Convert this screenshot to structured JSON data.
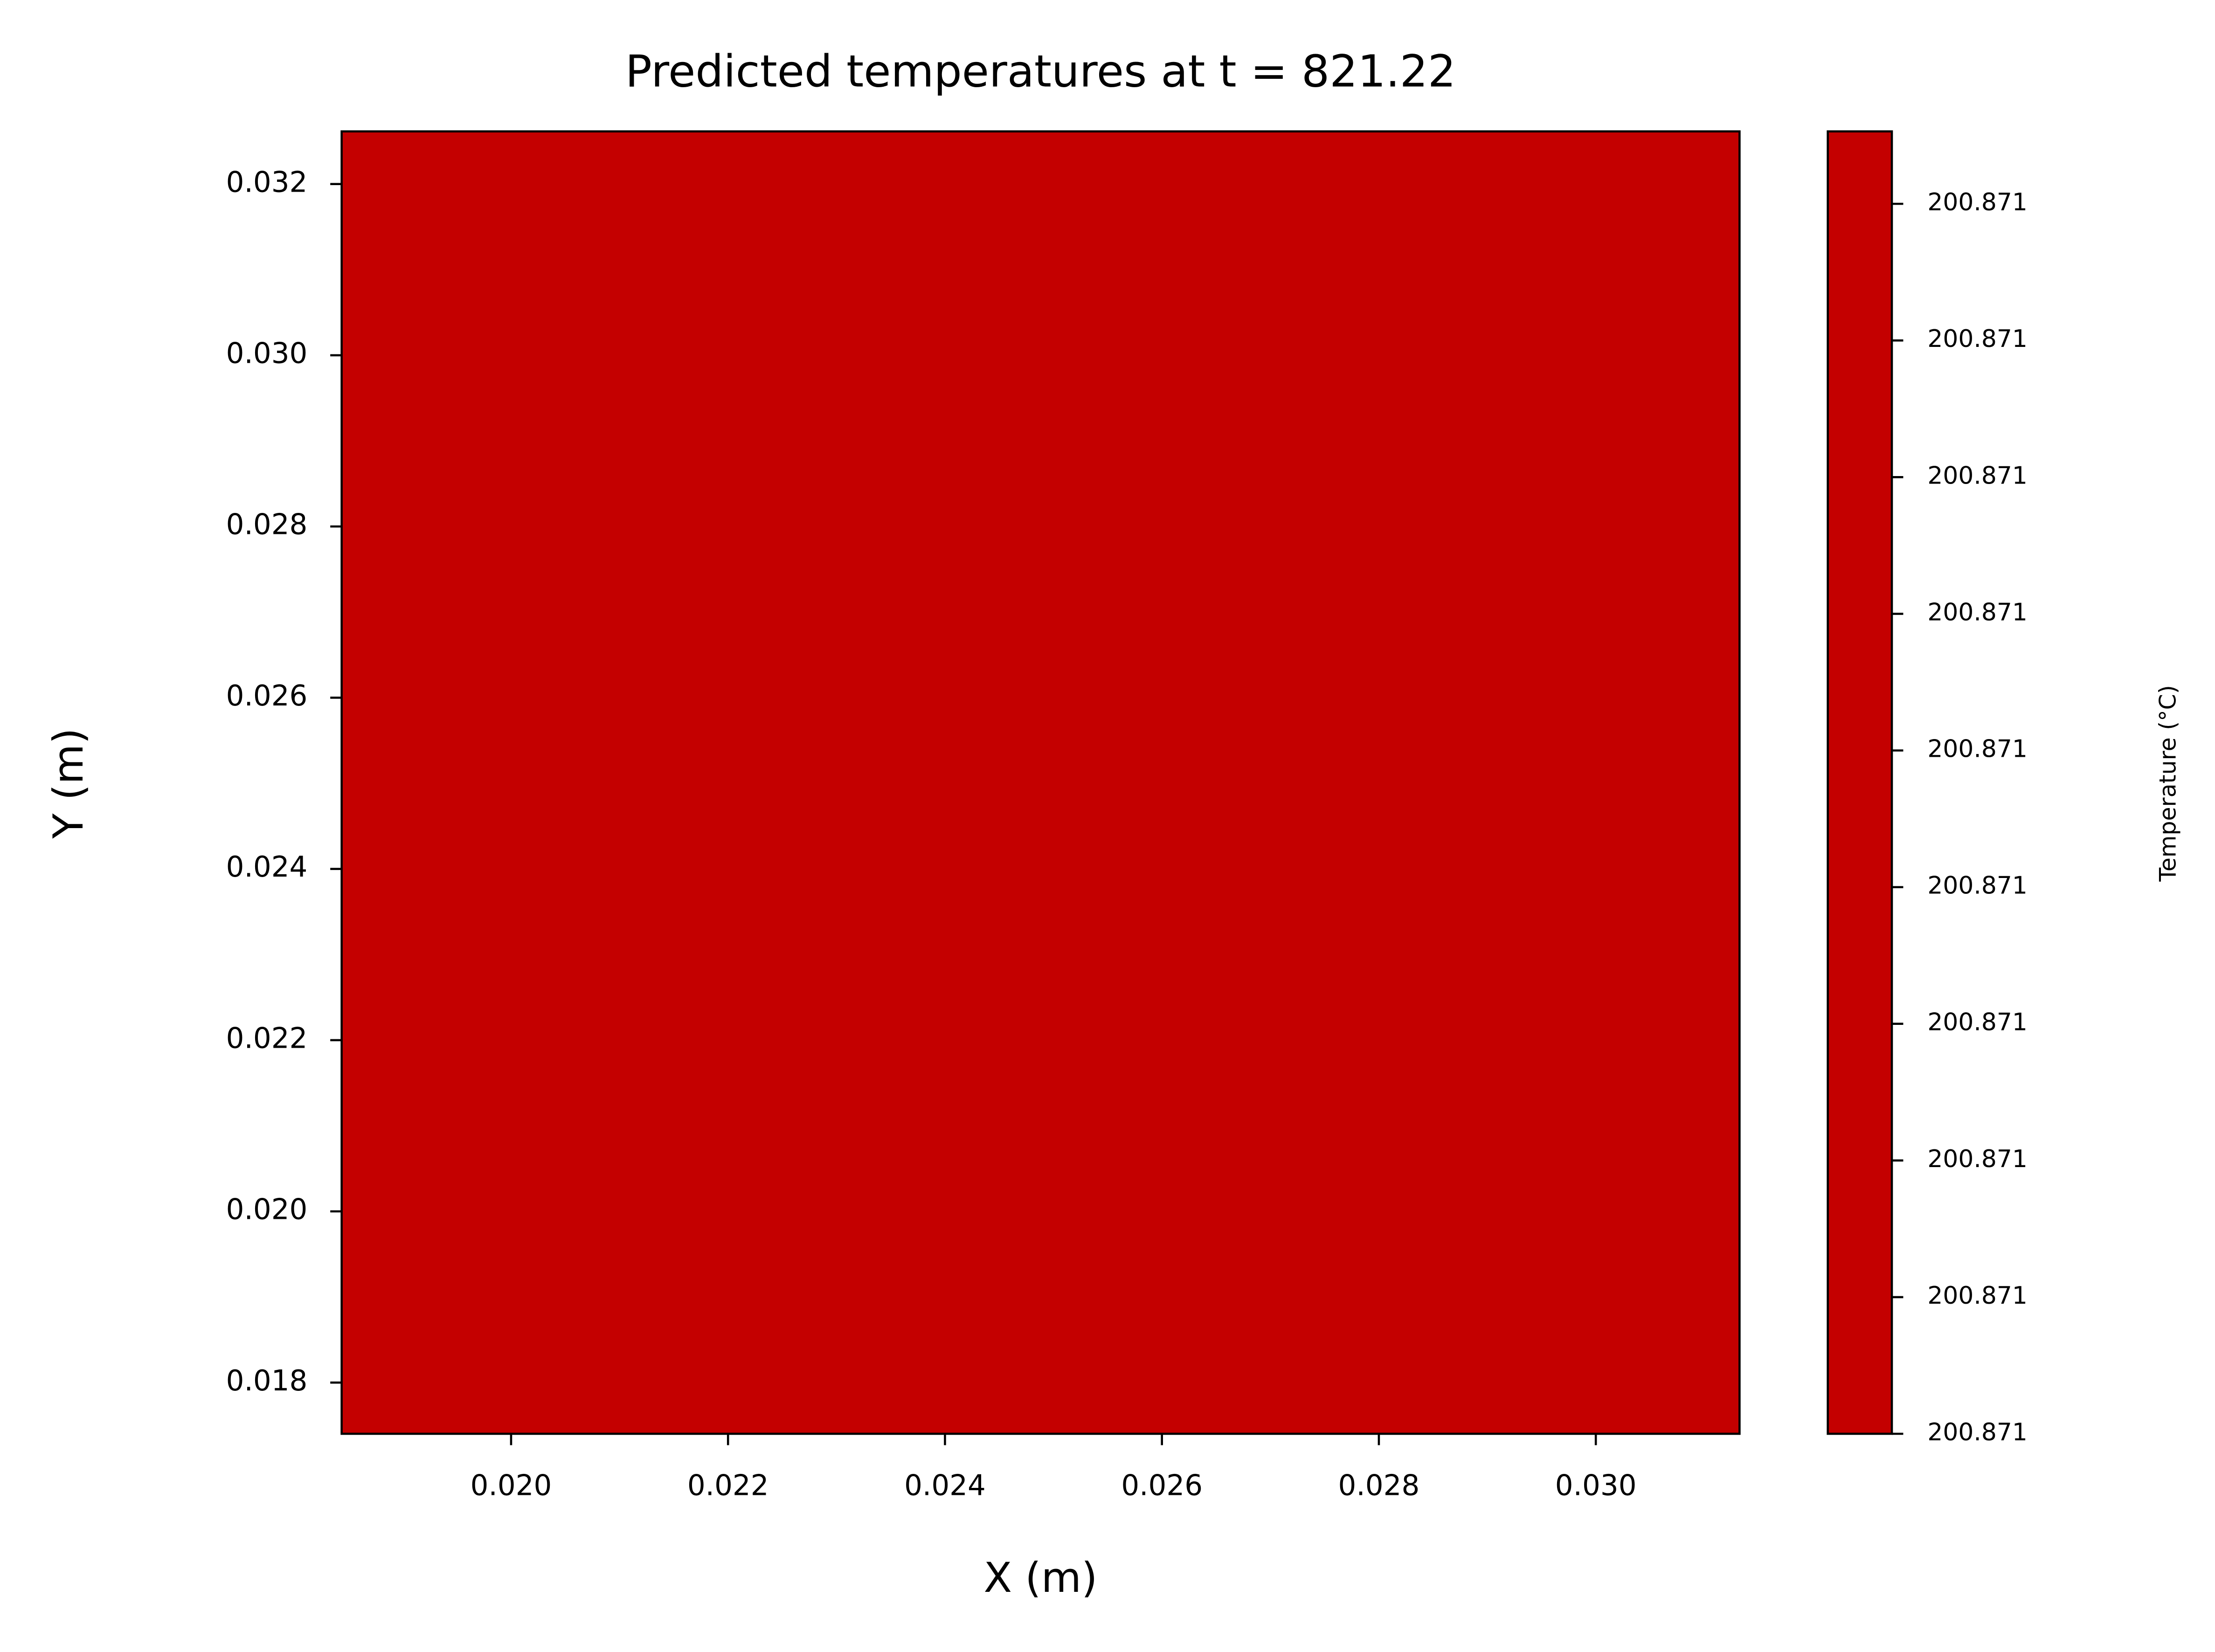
{
  "chart_data": {
    "type": "heatmap",
    "title": "Predicted temperatures at t = 821.22",
    "x_label": "X (m)",
    "y_label": "Y (m)",
    "colorbar_label": "Temperature (°C)",
    "values": [
      [
        200.87105
      ]
    ],
    "color": "#c40000",
    "xlim": [
      0.018438,
      0.031325
    ],
    "ylim": [
      0.017402,
      0.032615
    ],
    "xticks": [
      {
        "value": 0.02,
        "label": "0.020"
      },
      {
        "value": 0.022,
        "label": "0.022"
      },
      {
        "value": 0.024,
        "label": "0.024"
      },
      {
        "value": 0.026,
        "label": "0.026"
      },
      {
        "value": 0.028,
        "label": "0.028"
      },
      {
        "value": 0.03,
        "label": "0.030"
      }
    ],
    "yticks": [
      {
        "value": 0.018,
        "label": "0.018"
      },
      {
        "value": 0.02,
        "label": "0.020"
      },
      {
        "value": 0.022,
        "label": "0.022"
      },
      {
        "value": 0.024,
        "label": "0.024"
      },
      {
        "value": 0.026,
        "label": "0.026"
      },
      {
        "value": 0.028,
        "label": "0.028"
      },
      {
        "value": 0.03,
        "label": "0.030"
      },
      {
        "value": 0.032,
        "label": "0.032"
      }
    ],
    "clim": [
      200.871,
      200.8710953
    ],
    "cticks": [
      {
        "value": 200.871,
        "label": "200.871"
      },
      {
        "value": 200.87101,
        "label": "200.871"
      },
      {
        "value": 200.87102,
        "label": "200.871"
      },
      {
        "value": 200.87103,
        "label": "200.871"
      },
      {
        "value": 200.87104,
        "label": "200.871"
      },
      {
        "value": 200.87105,
        "label": "200.871"
      },
      {
        "value": 200.87106,
        "label": "200.871"
      },
      {
        "value": 200.87107,
        "label": "200.871"
      },
      {
        "value": 200.87108,
        "label": "200.871"
      },
      {
        "value": 200.87109,
        "label": "200.871"
      }
    ]
  }
}
